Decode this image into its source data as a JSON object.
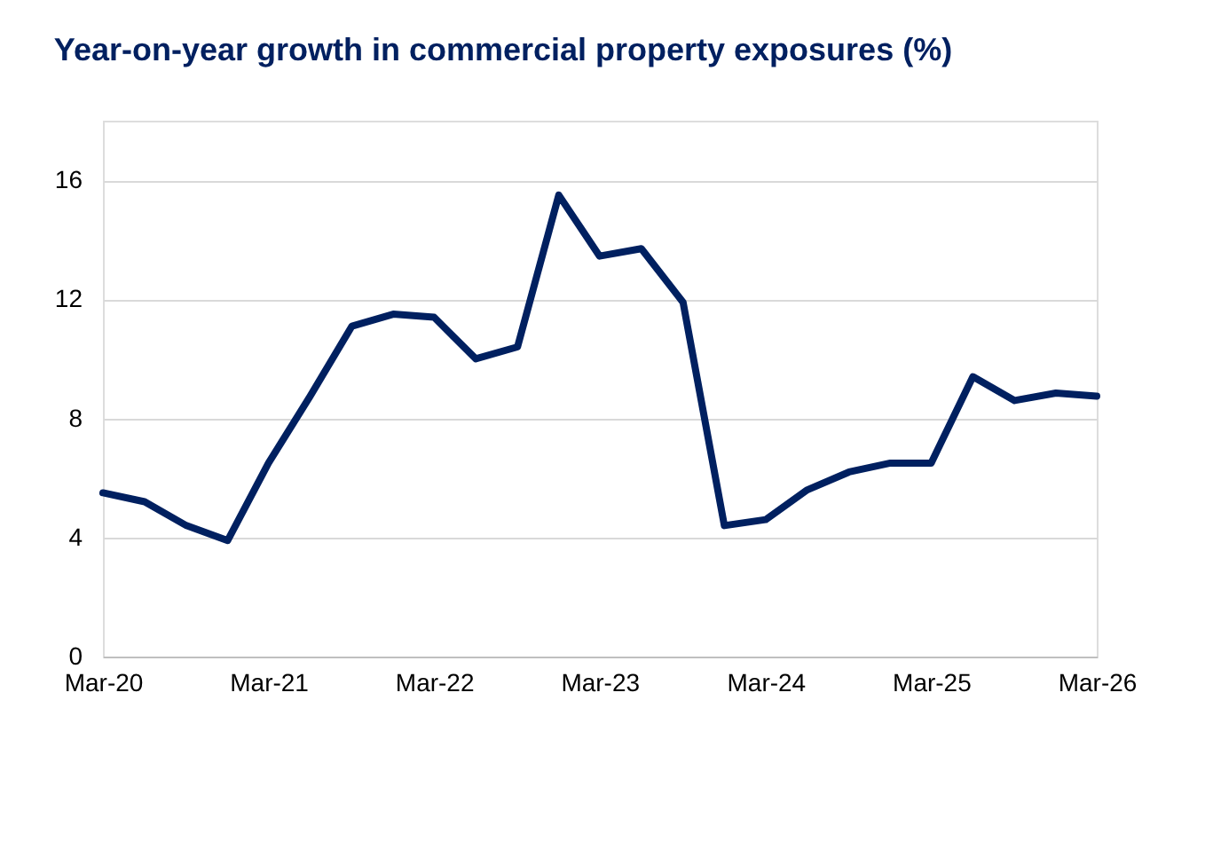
{
  "chart_data": {
    "type": "line",
    "title": "Year-on-year growth in commercial property exposures (%)",
    "x": [
      "2020-03",
      "2020-06",
      "2020-09",
      "2020-12",
      "2021-03",
      "2021-06",
      "2021-09",
      "2021-12",
      "2022-03",
      "2022-06",
      "2022-09",
      "2022-12",
      "2023-03",
      "2023-06",
      "2023-09",
      "2023-12",
      "2024-03",
      "2024-06",
      "2024-09",
      "2024-12",
      "2025-03",
      "2025-06",
      "2025-09",
      "2025-12",
      "2026-03"
    ],
    "series": [
      {
        "color": "#002060",
        "values": [
          5.5,
          5.2,
          4.4,
          3.9,
          6.5,
          8.75,
          11.1,
          11.5,
          11.4,
          10.0,
          10.4,
          15.5,
          13.45,
          13.7,
          11.9,
          4.4,
          4.6,
          5.6,
          6.2,
          6.5,
          6.5,
          9.4,
          8.6,
          8.85,
          8.75
        ]
      }
    ],
    "xlim": [
      "2020-03",
      "2026-03"
    ],
    "xticks": [
      {
        "value": "2020-03",
        "label": "Mar-20"
      },
      {
        "value": "2021-03",
        "label": "Mar-21"
      },
      {
        "value": "2022-03",
        "label": "Mar-22"
      },
      {
        "value": "2023-03",
        "label": "Mar-23"
      },
      {
        "value": "2024-03",
        "label": "Mar-24"
      },
      {
        "value": "2025-03",
        "label": "Mar-25"
      },
      {
        "value": "2026-03",
        "label": "Mar-26"
      }
    ],
    "ylim": [
      0,
      18
    ],
    "yticks": [
      0,
      4,
      8,
      12,
      16
    ],
    "grid": "y",
    "legend": false,
    "marker": "none",
    "line_style": "solid"
  }
}
